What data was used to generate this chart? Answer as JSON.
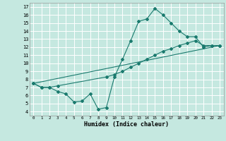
{
  "xlabel": "Humidex (Indice chaleur)",
  "bg_color": "#c5e8e0",
  "line_color": "#1a7a6e",
  "grid_color": "#aed4cc",
  "xlim": [
    -0.5,
    23.5
  ],
  "ylim": [
    3.5,
    17.5
  ],
  "xticks": [
    0,
    1,
    2,
    3,
    4,
    5,
    6,
    7,
    8,
    9,
    10,
    11,
    12,
    13,
    14,
    15,
    16,
    17,
    18,
    19,
    20,
    21,
    22,
    23
  ],
  "yticks": [
    4,
    5,
    6,
    7,
    8,
    9,
    10,
    11,
    12,
    13,
    14,
    15,
    16,
    17
  ],
  "line1_x": [
    0,
    1,
    2,
    3,
    4,
    5,
    6,
    7,
    8,
    9,
    10,
    11,
    12,
    13,
    14,
    15,
    16,
    17,
    18,
    19,
    20,
    21,
    22,
    23
  ],
  "line1_y": [
    7.5,
    7.0,
    7.0,
    6.5,
    6.2,
    5.2,
    5.3,
    6.2,
    4.3,
    4.5,
    8.3,
    10.5,
    12.8,
    15.2,
    15.5,
    16.8,
    16.0,
    15.0,
    14.0,
    13.3,
    13.3,
    12.0,
    12.2,
    12.2
  ],
  "line2_x": [
    0,
    1,
    2,
    3,
    9,
    10,
    11,
    12,
    13,
    14,
    15,
    16,
    17,
    18,
    19,
    20,
    21,
    22,
    23
  ],
  "line2_y": [
    7.5,
    7.0,
    7.0,
    7.2,
    8.3,
    8.6,
    9.0,
    9.5,
    10.0,
    10.5,
    11.0,
    11.5,
    11.8,
    12.2,
    12.5,
    12.8,
    12.2,
    12.2,
    12.2
  ],
  "line3_x": [
    0,
    23
  ],
  "line3_y": [
    7.5,
    12.2
  ]
}
